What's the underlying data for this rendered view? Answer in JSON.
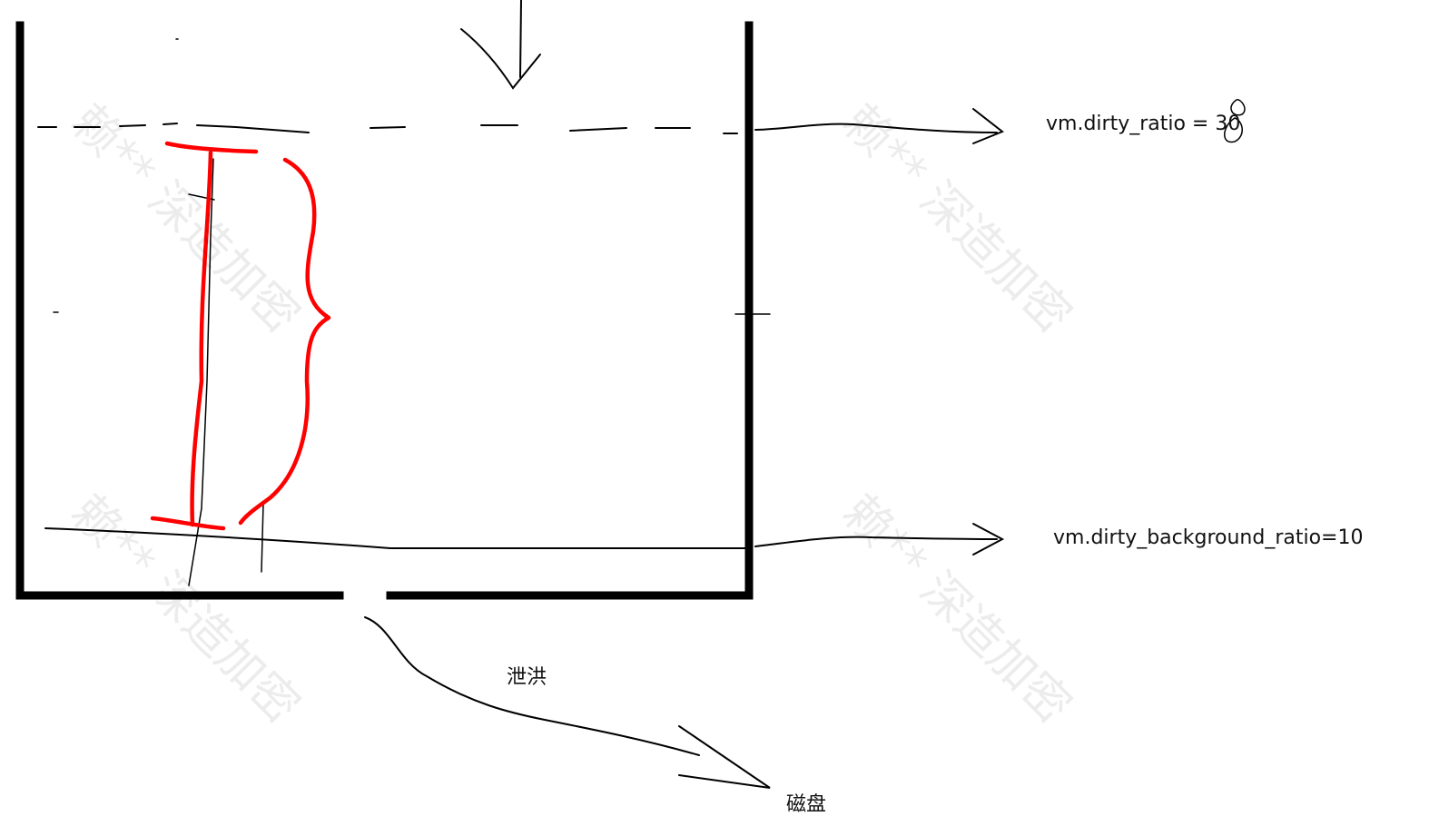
{
  "labels": {
    "dirty_ratio": "vm.dirty_ratio = 30",
    "dirty_background_ratio": "vm.dirty_background_ratio=10",
    "flush": "泄洪",
    "disk": "磁盘"
  },
  "watermark": {
    "text": "赖** 深造加密"
  },
  "colors": {
    "ink": "#000000",
    "highlight": "#ff0000"
  }
}
